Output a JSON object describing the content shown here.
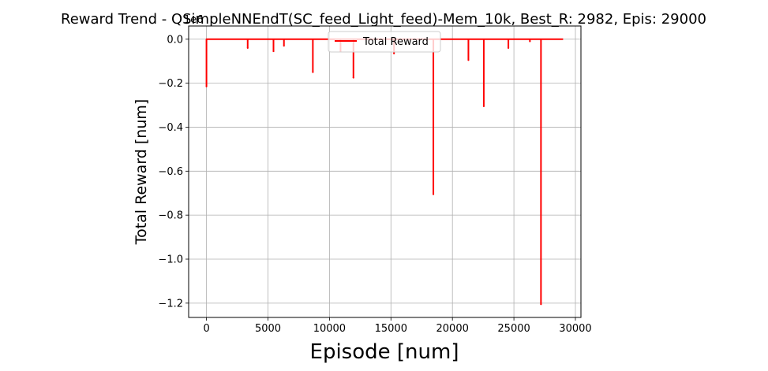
{
  "chart_data": {
    "type": "line",
    "title": "Reward Trend - QSimpleNNEndT(SC_feed_Light_feed)-Mem_10k, Best_R: 2982, Epis: 29000",
    "xlabel": "Episode [num]",
    "ylabel": "Total Reward [num]",
    "scale_label": "1e6",
    "xlim": [
      -1450,
      30450
    ],
    "ylim": [
      -1.265,
      0.06
    ],
    "xticks": [
      0,
      5000,
      10000,
      15000,
      20000,
      25000,
      30000
    ],
    "xtick_labels": [
      "0",
      "5000",
      "10000",
      "15000",
      "20000",
      "25000",
      "30000"
    ],
    "yticks": [
      0.0,
      -0.2,
      -0.4,
      -0.6,
      -0.8,
      -1.0,
      -1.2
    ],
    "ytick_labels": [
      "0.0",
      "−0.2",
      "−0.4",
      "−0.6",
      "−0.8",
      "−1.0",
      "−1.2"
    ],
    "grid": true,
    "legend_position": "top-center",
    "series": [
      {
        "name": "Total Reward",
        "color": "#ff0000",
        "baseline": 0.0,
        "x_range": [
          0,
          29000
        ],
        "dips": [
          {
            "x": 0,
            "y": -0.215
          },
          {
            "x": 3350,
            "y": -0.04
          },
          {
            "x": 5450,
            "y": -0.055
          },
          {
            "x": 6300,
            "y": -0.03
          },
          {
            "x": 8650,
            "y": -0.15
          },
          {
            "x": 10900,
            "y": -0.055
          },
          {
            "x": 11950,
            "y": -0.175
          },
          {
            "x": 15250,
            "y": -0.065
          },
          {
            "x": 18450,
            "y": -0.705
          },
          {
            "x": 21300,
            "y": -0.095
          },
          {
            "x": 22550,
            "y": -0.305
          },
          {
            "x": 24550,
            "y": -0.04
          },
          {
            "x": 26300,
            "y": -0.01
          },
          {
            "x": 27200,
            "y": -1.205
          }
        ]
      }
    ]
  }
}
